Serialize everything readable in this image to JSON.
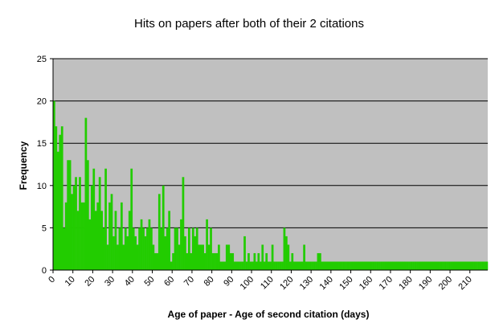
{
  "chart_data": {
    "type": "bar",
    "title": "Hits on papers after both of their 2 citations",
    "xlabel": "Age of paper - Age of second citation (days)",
    "ylabel": "Frequency",
    "xlim": [
      0,
      219
    ],
    "ylim": [
      0,
      25
    ],
    "x_ticks": [
      "0",
      "10",
      "20",
      "30",
      "40",
      "50",
      "60",
      "70",
      "80",
      "90",
      "100",
      "110",
      "120",
      "130",
      "140",
      "150",
      "160",
      "170",
      "180",
      "190",
      "200",
      "210"
    ],
    "y_ticks": [
      "0",
      "5",
      "10",
      "15",
      "20",
      "25"
    ],
    "grid": true,
    "legend": "none",
    "colors": {
      "bar": "#22cc00",
      "plot_bg": "#c0c0c0",
      "grid": "#000000"
    },
    "x": [
      0,
      1,
      2,
      3,
      4,
      5,
      6,
      7,
      8,
      9,
      10,
      11,
      12,
      13,
      14,
      15,
      16,
      17,
      18,
      19,
      20,
      21,
      22,
      23,
      24,
      25,
      26,
      27,
      28,
      29,
      30,
      31,
      32,
      33,
      34,
      35,
      36,
      37,
      38,
      39,
      40,
      41,
      42,
      43,
      44,
      45,
      46,
      47,
      48,
      49,
      50,
      51,
      52,
      53,
      54,
      55,
      56,
      57,
      58,
      59,
      60,
      61,
      62,
      63,
      64,
      65,
      66,
      67,
      68,
      69,
      70,
      71,
      72,
      73,
      74,
      75,
      76,
      77,
      78,
      79,
      80,
      81,
      82,
      83,
      84,
      85,
      86,
      87,
      88,
      89,
      90,
      91,
      92,
      93,
      94,
      95,
      96,
      97,
      98,
      99,
      100,
      101,
      102,
      103,
      104,
      105,
      106,
      107,
      108,
      109,
      110,
      111,
      112,
      113,
      114,
      115,
      116,
      117,
      118,
      119,
      120,
      121,
      122,
      123,
      124,
      125,
      126,
      127,
      128,
      129,
      130,
      131,
      132,
      133,
      134,
      135,
      136,
      137,
      138,
      139,
      140,
      141,
      142,
      143,
      144,
      145,
      146,
      147,
      148,
      149,
      150,
      151,
      152,
      153,
      154,
      155,
      156,
      157,
      158,
      159,
      160,
      161,
      162,
      163,
      164,
      165,
      166,
      167,
      168,
      169,
      170,
      171,
      172,
      173,
      174,
      175,
      176,
      177,
      178,
      179,
      180,
      181,
      182,
      183,
      184,
      185,
      186,
      187,
      188,
      189,
      190,
      191,
      192,
      193,
      194,
      195,
      196,
      197,
      198,
      199,
      200,
      201,
      202,
      203,
      204,
      205,
      206,
      207,
      208,
      209,
      210,
      211,
      212,
      213,
      214,
      215,
      216,
      217,
      218
    ],
    "values": [
      20,
      17,
      14,
      16,
      17,
      5,
      8,
      13,
      13,
      9,
      10,
      11,
      7,
      11,
      8,
      8,
      18,
      13,
      6,
      10,
      12,
      7,
      8,
      11,
      7,
      5,
      12,
      3,
      8,
      9,
      4,
      7,
      3,
      5,
      8,
      3,
      5,
      4,
      7,
      12,
      5,
      4,
      3,
      5,
      6,
      5,
      4,
      5,
      6,
      5,
      3,
      2,
      2,
      9,
      5,
      10,
      4,
      5,
      7,
      1,
      2,
      5,
      5,
      3,
      6,
      11,
      4,
      2,
      5,
      2,
      5,
      4,
      5,
      3,
      3,
      3,
      2,
      6,
      3,
      5,
      2,
      2,
      2,
      3,
      1,
      1,
      1,
      3,
      3,
      2,
      2,
      1,
      1,
      1,
      1,
      1,
      4,
      1,
      2,
      1,
      1,
      2,
      1,
      2,
      1,
      3,
      1,
      2,
      1,
      1,
      3,
      1,
      1,
      1,
      1,
      1,
      5,
      4,
      3,
      1,
      2,
      1,
      1,
      1,
      1,
      1,
      3,
      1,
      1,
      1,
      1,
      1,
      1,
      2,
      2,
      1,
      1,
      1,
      1,
      1,
      1,
      1,
      1,
      1,
      1,
      1,
      1,
      1,
      1,
      1,
      1,
      1,
      1,
      1,
      1,
      1,
      1,
      1,
      1,
      1,
      1,
      1,
      1,
      1,
      1,
      1,
      1,
      1,
      1,
      1,
      1,
      1,
      1,
      1,
      1,
      1,
      1,
      1,
      1,
      1,
      1,
      1,
      1,
      1,
      1,
      1,
      1,
      1,
      1,
      1,
      1,
      1,
      1,
      1,
      1,
      1,
      1,
      1,
      1,
      1,
      1,
      1,
      1,
      1,
      1,
      1,
      1,
      1,
      1,
      1,
      1,
      1,
      1,
      1,
      1,
      1,
      1,
      1,
      1
    ]
  }
}
